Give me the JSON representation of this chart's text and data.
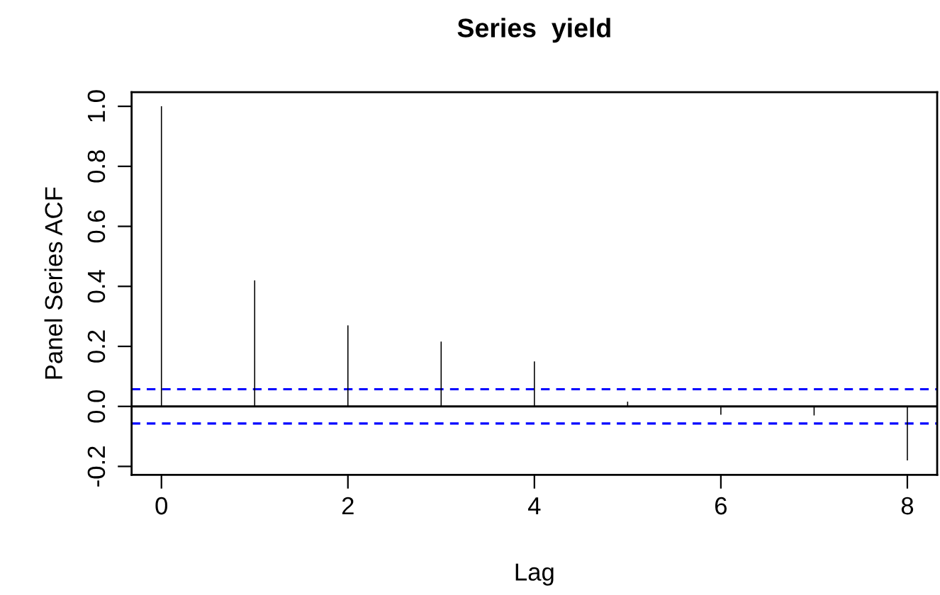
{
  "chart_data": {
    "type": "bar",
    "title": "Series  yield",
    "xlabel": "Lag",
    "ylabel": "Panel Series ACF",
    "x": [
      0,
      1,
      2,
      3,
      4,
      5,
      6,
      7,
      8
    ],
    "values": [
      1.0,
      0.42,
      0.27,
      0.216,
      0.15,
      0.016,
      -0.028,
      -0.03,
      -0.18
    ],
    "color": "#000000",
    "xlim": [
      -0.32,
      8.32
    ],
    "xticks": [
      0,
      2,
      4,
      6,
      8
    ],
    "ylim": [
      -0.228,
      1.047
    ],
    "yticks": [
      {
        "value": -0.2,
        "label": "-0.2"
      },
      {
        "value": 0.0,
        "label": "0.0"
      },
      {
        "value": 0.2,
        "label": "0.2"
      },
      {
        "value": 0.4,
        "label": "0.4"
      },
      {
        "value": 0.6,
        "label": "0.6"
      },
      {
        "value": 0.8,
        "label": "0.8"
      },
      {
        "value": 1.0,
        "label": "1.0"
      }
    ],
    "ref_lines": [
      {
        "axis": "y",
        "value": 0.0,
        "color": "#000000",
        "line_style": "solid"
      },
      {
        "axis": "y",
        "value": 0.057,
        "color": "#0000ff",
        "line_style": "dashed"
      },
      {
        "axis": "y",
        "value": -0.057,
        "color": "#0000ff",
        "line_style": "dashed"
      }
    ],
    "grid": false,
    "legend": false
  }
}
